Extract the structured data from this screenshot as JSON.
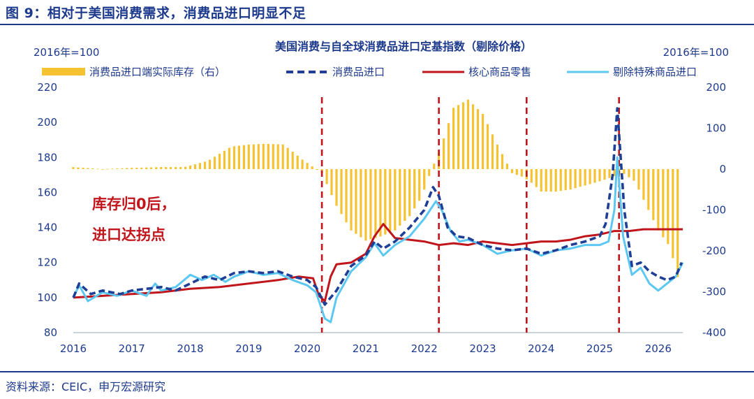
{
  "figure": {
    "label": "图 9：相对于美国消费需求，消费品进口明显不足",
    "source": "资料来源：CEIC，申万宏源研究"
  },
  "colors": {
    "inventory": "#f5c232",
    "imports": "#1f3f96",
    "core_retail": "#c0151b",
    "ex_special": "#5cc8f2",
    "vline": "#c0151b",
    "annotation": "#c0151b",
    "axis_text": "#1d3a8c"
  },
  "chart_data": {
    "type": "line",
    "title": "美国消费与自全球消费品进口定基指数（剔除价格）",
    "left_unit": "2016年=100",
    "right_unit": "2016年=100",
    "x_ticks": [
      "2016",
      "2017",
      "2018",
      "2019",
      "2020",
      "2021",
      "2022",
      "2023",
      "2024",
      "2025",
      "2026"
    ],
    "x_range": [
      2016.0,
      2026.42
    ],
    "y_left": {
      "min": 80,
      "max": 220,
      "ticks": [
        80,
        100,
        120,
        140,
        160,
        180,
        200,
        220
      ]
    },
    "y_right": {
      "min": -400,
      "max": 200,
      "ticks": [
        -400,
        -300,
        -200,
        -100,
        0,
        100,
        200
      ]
    },
    "legend": [
      {
        "key": "inventory",
        "label": "消费品进口端实际库存（右）"
      },
      {
        "key": "imports",
        "label": "消费品进口"
      },
      {
        "key": "core_retail",
        "label": "核心商品零售"
      },
      {
        "key": "ex_special",
        "label": "剔除特殊商品进口"
      }
    ],
    "annotation": [
      "库存归0后，",
      "进口达拐点"
    ],
    "vlines": [
      2020.25,
      2022.25,
      2023.75,
      2025.33
    ],
    "series": [
      {
        "key": "inventory",
        "name": "消费品进口端实际库存（右）",
        "axis": "right",
        "style": "bar",
        "x": [
          2016.0,
          2016.5,
          2017.0,
          2017.5,
          2017.9,
          2018.3,
          2018.7,
          2019.0,
          2019.3,
          2019.6,
          2019.9,
          2020.1,
          2020.25,
          2020.5,
          2020.75,
          2021.0,
          2021.25,
          2021.5,
          2021.75,
          2021.95,
          2022.1,
          2022.3,
          2022.5,
          2022.75,
          2023.0,
          2023.25,
          2023.5,
          2023.7,
          2023.85,
          2024.0,
          2024.25,
          2024.5,
          2024.75,
          2025.0,
          2025.2,
          2025.4,
          2025.6,
          2025.8,
          2026.0,
          2026.2,
          2026.38
        ],
        "values": [
          5,
          0,
          3,
          5,
          5,
          20,
          55,
          60,
          62,
          60,
          25,
          5,
          -10,
          -90,
          -150,
          -175,
          -165,
          -150,
          -115,
          -70,
          -10,
          60,
          150,
          170,
          135,
          60,
          -10,
          -20,
          -35,
          -55,
          -55,
          -50,
          -40,
          -30,
          -20,
          -10,
          -30,
          -90,
          -150,
          -190,
          -290
        ]
      },
      {
        "key": "imports",
        "name": "消费品进口",
        "axis": "left",
        "style": "dashed",
        "x": [
          2016.0,
          2016.1,
          2016.3,
          2016.5,
          2016.8,
          2017.0,
          2017.25,
          2017.5,
          2017.75,
          2018.0,
          2018.25,
          2018.5,
          2018.75,
          2019.0,
          2019.25,
          2019.5,
          2019.75,
          2020.0,
          2020.15,
          2020.3,
          2020.5,
          2020.75,
          2021.0,
          2021.15,
          2021.3,
          2021.5,
          2021.75,
          2022.0,
          2022.15,
          2022.25,
          2022.4,
          2022.55,
          2022.75,
          2023.0,
          2023.25,
          2023.5,
          2023.75,
          2024.0,
          2024.25,
          2024.5,
          2024.75,
          2025.0,
          2025.1,
          2025.22,
          2025.3,
          2025.42,
          2025.55,
          2025.7,
          2025.85,
          2026.0,
          2026.15,
          2026.3,
          2026.4
        ],
        "values": [
          100,
          108,
          102,
          104,
          102,
          104,
          105,
          106,
          104,
          108,
          112,
          110,
          114,
          115,
          114,
          115,
          112,
          110,
          106,
          96,
          104,
          118,
          124,
          132,
          128,
          132,
          140,
          150,
          163,
          158,
          140,
          135,
          134,
          130,
          128,
          127,
          128,
          125,
          127,
          130,
          132,
          135,
          142,
          170,
          208,
          150,
          118,
          120,
          115,
          112,
          110,
          112,
          120
        ]
      },
      {
        "key": "core_retail",
        "name": "核心商品零售",
        "axis": "left",
        "style": "solid",
        "x": [
          2016.0,
          2016.5,
          2017.0,
          2017.5,
          2018.0,
          2018.5,
          2019.0,
          2019.5,
          2019.85,
          2020.1,
          2020.2,
          2020.3,
          2020.4,
          2020.5,
          2020.75,
          2021.0,
          2021.15,
          2021.3,
          2021.5,
          2021.75,
          2022.0,
          2022.25,
          2022.5,
          2022.75,
          2023.0,
          2023.25,
          2023.5,
          2023.75,
          2024.0,
          2024.25,
          2024.5,
          2024.75,
          2025.0,
          2025.25,
          2025.5,
          2025.75,
          2026.0,
          2026.2,
          2026.42
        ],
        "values": [
          100,
          101,
          102,
          103,
          105,
          106,
          108,
          110,
          112,
          111,
          101,
          98,
          112,
          119,
          120,
          125,
          135,
          142,
          134,
          133,
          132,
          130,
          131,
          130,
          132,
          131,
          130,
          131,
          132,
          132,
          133,
          135,
          136,
          138,
          138,
          139,
          139,
          139,
          139
        ]
      },
      {
        "key": "ex_special",
        "name": "剔除特殊商品进口",
        "axis": "left",
        "style": "solid",
        "x": [
          2016.0,
          2016.1,
          2016.25,
          2016.5,
          2016.75,
          2017.0,
          2017.25,
          2017.4,
          2017.5,
          2017.75,
          2018.0,
          2018.2,
          2018.4,
          2018.6,
          2018.75,
          2019.0,
          2019.25,
          2019.5,
          2019.75,
          2020.0,
          2020.15,
          2020.3,
          2020.4,
          2020.5,
          2020.75,
          2021.0,
          2021.15,
          2021.3,
          2021.5,
          2021.75,
          2022.0,
          2022.2,
          2022.3,
          2022.45,
          2022.6,
          2022.75,
          2023.0,
          2023.25,
          2023.5,
          2023.75,
          2024.0,
          2024.25,
          2024.5,
          2024.75,
          2025.0,
          2025.15,
          2025.25,
          2025.3,
          2025.4,
          2025.55,
          2025.7,
          2025.85,
          2026.0,
          2026.15,
          2026.3,
          2026.42
        ],
        "values": [
          100,
          107,
          98,
          103,
          101,
          104,
          101,
          108,
          104,
          106,
          113,
          110,
          113,
          109,
          112,
          115,
          113,
          114,
          110,
          107,
          103,
          88,
          86,
          100,
          115,
          123,
          131,
          124,
          130,
          135,
          145,
          155,
          150,
          138,
          132,
          133,
          130,
          125,
          127,
          128,
          124,
          127,
          128,
          130,
          130,
          132,
          150,
          180,
          135,
          113,
          117,
          108,
          104,
          108,
          112,
          120
        ]
      }
    ]
  }
}
